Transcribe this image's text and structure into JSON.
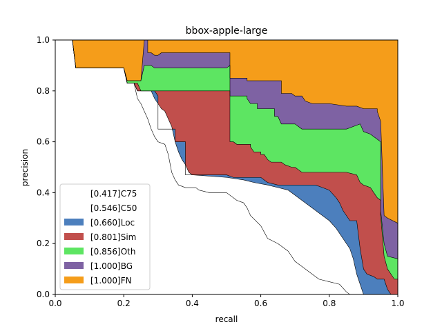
{
  "chart_data": {
    "type": "area",
    "title": "bbox-apple-large",
    "xlabel": "recall",
    "ylabel": "precision",
    "xlim": [
      0,
      1
    ],
    "ylim": [
      0,
      1
    ],
    "xticks": [
      "0.0",
      "0.2",
      "0.4",
      "0.6",
      "0.8",
      "1.0"
    ],
    "yticks": [
      "0.0",
      "0.2",
      "0.4",
      "0.6",
      "0.8",
      "1.0"
    ],
    "grid": false,
    "legend_position": "lower-left",
    "series": [
      {
        "name": "[0.417]C75",
        "color": "#ffffff",
        "points": [
          [
            0,
            1
          ],
          [
            0.05,
            1
          ],
          [
            0.06,
            0.89
          ],
          [
            0.2,
            0.89
          ],
          [
            0.21,
            0.83
          ],
          [
            0.23,
            0.83
          ],
          [
            0.24,
            0.77
          ],
          [
            0.25,
            0.75
          ],
          [
            0.26,
            0.72
          ],
          [
            0.27,
            0.69
          ],
          [
            0.28,
            0.65
          ],
          [
            0.29,
            0.62
          ],
          [
            0.3,
            0.6
          ],
          [
            0.32,
            0.59
          ],
          [
            0.33,
            0.55
          ],
          [
            0.34,
            0.48
          ],
          [
            0.35,
            0.45
          ],
          [
            0.36,
            0.43
          ],
          [
            0.38,
            0.42
          ],
          [
            0.41,
            0.42
          ],
          [
            0.42,
            0.41
          ],
          [
            0.45,
            0.4
          ],
          [
            0.5,
            0.4
          ],
          [
            0.53,
            0.37
          ],
          [
            0.55,
            0.36
          ],
          [
            0.56,
            0.34
          ],
          [
            0.57,
            0.31
          ],
          [
            0.6,
            0.27
          ],
          [
            0.62,
            0.22
          ],
          [
            0.65,
            0.2
          ],
          [
            0.68,
            0.17
          ],
          [
            0.7,
            0.13
          ],
          [
            0.72,
            0.11
          ],
          [
            0.75,
            0.08
          ],
          [
            0.77,
            0.06
          ],
          [
            0.8,
            0.05
          ],
          [
            0.83,
            0.04
          ],
          [
            0.85,
            0.01
          ],
          [
            0.86,
            0
          ],
          [
            1,
            0
          ]
        ]
      },
      {
        "name": "[0.546]C50",
        "color": "#ffffff",
        "points": [
          [
            0,
            1
          ],
          [
            0.05,
            1
          ],
          [
            0.06,
            0.89
          ],
          [
            0.2,
            0.89
          ],
          [
            0.21,
            0.83
          ],
          [
            0.23,
            0.83
          ],
          [
            0.24,
            0.8
          ],
          [
            0.28,
            0.8
          ],
          [
            0.29,
            0.77
          ],
          [
            0.3,
            0.75
          ],
          [
            0.31,
            0.73
          ],
          [
            0.32,
            0.72
          ],
          [
            0.33,
            0.69
          ],
          [
            0.34,
            0.66
          ],
          [
            0.35,
            0.6
          ],
          [
            0.36,
            0.56
          ],
          [
            0.37,
            0.53
          ],
          [
            0.38,
            0.51
          ],
          [
            0.39,
            0.48
          ],
          [
            0.4,
            0.47
          ],
          [
            0.5,
            0.46
          ],
          [
            0.55,
            0.45
          ],
          [
            0.58,
            0.44
          ],
          [
            0.62,
            0.43
          ],
          [
            0.65,
            0.42
          ],
          [
            0.68,
            0.41
          ],
          [
            0.7,
            0.39
          ],
          [
            0.72,
            0.37
          ],
          [
            0.74,
            0.35
          ],
          [
            0.76,
            0.33
          ],
          [
            0.78,
            0.31
          ],
          [
            0.8,
            0.29
          ],
          [
            0.82,
            0.26
          ],
          [
            0.84,
            0.22
          ],
          [
            0.86,
            0.18
          ],
          [
            0.87,
            0.14
          ],
          [
            0.88,
            0.08
          ],
          [
            0.89,
            0.04
          ],
          [
            0.9,
            0
          ],
          [
            1,
            0
          ]
        ]
      },
      {
        "name": "[0.660]Loc",
        "color": "#4c7fbd",
        "points": [
          [
            0,
            1
          ],
          [
            0.05,
            1
          ],
          [
            0.06,
            0.89
          ],
          [
            0.2,
            0.89
          ],
          [
            0.21,
            0.83
          ],
          [
            0.23,
            0.83
          ],
          [
            0.24,
            0.8
          ],
          [
            0.29,
            0.8
          ],
          [
            0.3,
            0.78
          ],
          [
            0.3,
            0.76
          ],
          [
            0.3,
            0.65
          ],
          [
            0.35,
            0.65
          ],
          [
            0.35,
            0.6
          ],
          [
            0.38,
            0.6
          ],
          [
            0.38,
            0.47
          ],
          [
            0.5,
            0.47
          ],
          [
            0.52,
            0.46
          ],
          [
            0.6,
            0.46
          ],
          [
            0.61,
            0.45
          ],
          [
            0.62,
            0.44
          ],
          [
            0.65,
            0.43
          ],
          [
            0.67,
            0.43
          ],
          [
            0.7,
            0.43
          ],
          [
            0.75,
            0.43
          ],
          [
            0.76,
            0.43
          ],
          [
            0.78,
            0.42
          ],
          [
            0.8,
            0.41
          ],
          [
            0.82,
            0.38
          ],
          [
            0.83,
            0.36
          ],
          [
            0.84,
            0.33
          ],
          [
            0.85,
            0.31
          ],
          [
            0.86,
            0.29
          ],
          [
            0.88,
            0.29
          ],
          [
            0.89,
            0.18
          ],
          [
            0.9,
            0.1
          ],
          [
            0.91,
            0.08
          ],
          [
            0.93,
            0.07
          ],
          [
            0.94,
            0.06
          ],
          [
            0.96,
            0.06
          ],
          [
            0.97,
            0.02
          ],
          [
            0.98,
            0
          ],
          [
            1,
            0
          ]
        ]
      },
      {
        "name": "[0.801]Sim",
        "color": "#c14f4c",
        "points": [
          [
            0,
            1
          ],
          [
            0.05,
            1
          ],
          [
            0.06,
            0.89
          ],
          [
            0.2,
            0.89
          ],
          [
            0.21,
            0.83
          ],
          [
            0.24,
            0.83
          ],
          [
            0.25,
            0.8
          ],
          [
            0.5,
            0.8
          ],
          [
            0.51,
            0.8
          ],
          [
            0.51,
            0.6
          ],
          [
            0.52,
            0.6
          ],
          [
            0.53,
            0.59
          ],
          [
            0.57,
            0.59
          ],
          [
            0.57,
            0.58
          ],
          [
            0.58,
            0.56
          ],
          [
            0.6,
            0.56
          ],
          [
            0.6,
            0.55
          ],
          [
            0.61,
            0.55
          ],
          [
            0.62,
            0.53
          ],
          [
            0.63,
            0.52
          ],
          [
            0.66,
            0.52
          ],
          [
            0.67,
            0.51
          ],
          [
            0.69,
            0.5
          ],
          [
            0.7,
            0.5
          ],
          [
            0.72,
            0.48
          ],
          [
            0.75,
            0.48
          ],
          [
            0.76,
            0.48
          ],
          [
            0.8,
            0.48
          ],
          [
            0.85,
            0.48
          ],
          [
            0.88,
            0.47
          ],
          [
            0.89,
            0.44
          ],
          [
            0.9,
            0.43
          ],
          [
            0.92,
            0.42
          ],
          [
            0.93,
            0.4
          ],
          [
            0.94,
            0.38
          ],
          [
            0.95,
            0.37
          ],
          [
            0.95,
            0.31
          ],
          [
            0.96,
            0.15
          ],
          [
            0.97,
            0.1
          ],
          [
            0.99,
            0.06
          ],
          [
            1,
            0.06
          ]
        ]
      },
      {
        "name": "[0.856]Oth",
        "color": "#5de562",
        "points": [
          [
            0,
            1
          ],
          [
            0.05,
            1
          ],
          [
            0.06,
            0.89
          ],
          [
            0.2,
            0.89
          ],
          [
            0.21,
            0.84
          ],
          [
            0.25,
            0.84
          ],
          [
            0.26,
            0.9
          ],
          [
            0.28,
            0.9
          ],
          [
            0.29,
            0.89
          ],
          [
            0.3,
            0.89
          ],
          [
            0.31,
            0.89
          ],
          [
            0.5,
            0.89
          ],
          [
            0.51,
            0.9
          ],
          [
            0.51,
            0.78
          ],
          [
            0.56,
            0.78
          ],
          [
            0.56,
            0.77
          ],
          [
            0.57,
            0.75
          ],
          [
            0.59,
            0.75
          ],
          [
            0.59,
            0.73
          ],
          [
            0.64,
            0.73
          ],
          [
            0.64,
            0.7
          ],
          [
            0.65,
            0.7
          ],
          [
            0.66,
            0.67
          ],
          [
            0.7,
            0.67
          ],
          [
            0.71,
            0.66
          ],
          [
            0.72,
            0.65
          ],
          [
            0.75,
            0.65
          ],
          [
            0.76,
            0.65
          ],
          [
            0.8,
            0.65
          ],
          [
            0.85,
            0.65
          ],
          [
            0.89,
            0.67
          ],
          [
            0.9,
            0.64
          ],
          [
            0.92,
            0.63
          ],
          [
            0.93,
            0.62
          ],
          [
            0.94,
            0.61
          ],
          [
            0.95,
            0.6
          ],
          [
            0.95,
            0.33
          ],
          [
            0.96,
            0.2
          ],
          [
            0.97,
            0.15
          ],
          [
            1,
            0.14
          ]
        ]
      },
      {
        "name": "[1.000]BG",
        "color": "#7e62a3",
        "points": [
          [
            0,
            1
          ],
          [
            0.05,
            1
          ],
          [
            0.06,
            0.89
          ],
          [
            0.2,
            0.89
          ],
          [
            0.21,
            0.84
          ],
          [
            0.25,
            0.84
          ],
          [
            0.26,
            1
          ],
          [
            0.27,
            1
          ],
          [
            0.27,
            0.95
          ],
          [
            0.28,
            0.95
          ],
          [
            0.29,
            0.94
          ],
          [
            0.3,
            0.94
          ],
          [
            0.31,
            0.95
          ],
          [
            0.51,
            0.95
          ],
          [
            0.51,
            0.85
          ],
          [
            0.56,
            0.85
          ],
          [
            0.56,
            0.84
          ],
          [
            0.57,
            0.84
          ],
          [
            0.58,
            0.84
          ],
          [
            0.59,
            0.84
          ],
          [
            0.66,
            0.84
          ],
          [
            0.66,
            0.79
          ],
          [
            0.69,
            0.79
          ],
          [
            0.7,
            0.78
          ],
          [
            0.72,
            0.78
          ],
          [
            0.73,
            0.76
          ],
          [
            0.75,
            0.75
          ],
          [
            0.76,
            0.75
          ],
          [
            0.8,
            0.75
          ],
          [
            0.85,
            0.74
          ],
          [
            0.88,
            0.74
          ],
          [
            0.9,
            0.73
          ],
          [
            0.92,
            0.73
          ],
          [
            0.94,
            0.73
          ],
          [
            0.94,
            0.72
          ],
          [
            0.95,
            0.68
          ],
          [
            0.96,
            0.31
          ],
          [
            0.97,
            0.3
          ],
          [
            1,
            0.28
          ]
        ]
      },
      {
        "name": "[1.000]FN",
        "color": "#f59d1a",
        "points": [
          [
            0,
            1
          ],
          [
            1,
            1
          ]
        ]
      }
    ]
  }
}
